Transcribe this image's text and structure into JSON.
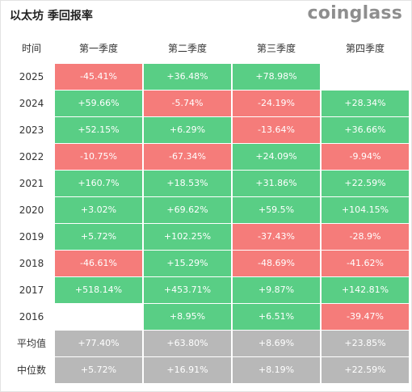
{
  "header": {
    "title": "以太坊 季回报率",
    "brand": "coinglass"
  },
  "colors": {
    "positive": "#59ce85",
    "negative": "#f57c7a",
    "summary": "#b8b8b8"
  },
  "chart_data": {
    "type": "table",
    "title": "以太坊 季回报率",
    "corner_label": "时间",
    "columns": [
      "第一季度",
      "第二季度",
      "第三季度",
      "第四季度"
    ],
    "rows": [
      {
        "label": "2025",
        "values": [
          "-45.41%",
          "+36.48%",
          "+78.98%",
          ""
        ]
      },
      {
        "label": "2024",
        "values": [
          "+59.66%",
          "-5.74%",
          "-24.19%",
          "+28.34%"
        ]
      },
      {
        "label": "2023",
        "values": [
          "+52.15%",
          "+6.29%",
          "-13.64%",
          "+36.66%"
        ]
      },
      {
        "label": "2022",
        "values": [
          "-10.75%",
          "-67.34%",
          "+24.09%",
          "-9.94%"
        ]
      },
      {
        "label": "2021",
        "values": [
          "+160.7%",
          "+18.53%",
          "+31.86%",
          "+22.59%"
        ]
      },
      {
        "label": "2020",
        "values": [
          "+3.02%",
          "+69.62%",
          "+59.5%",
          "+104.15%"
        ]
      },
      {
        "label": "2019",
        "values": [
          "+5.72%",
          "+102.25%",
          "-37.43%",
          "-28.9%"
        ]
      },
      {
        "label": "2018",
        "values": [
          "-46.61%",
          "+15.29%",
          "-48.69%",
          "-41.62%"
        ]
      },
      {
        "label": "2017",
        "values": [
          "+518.14%",
          "+453.71%",
          "+9.87%",
          "+142.81%"
        ]
      },
      {
        "label": "2016",
        "values": [
          "",
          "+8.95%",
          "+6.51%",
          "-39.47%"
        ]
      }
    ],
    "summary_rows": [
      {
        "label": "平均值",
        "values": [
          "+77.40%",
          "+63.80%",
          "+8.69%",
          "+23.85%"
        ]
      },
      {
        "label": "中位数",
        "values": [
          "+5.72%",
          "+16.91%",
          "+8.19%",
          "+22.59%"
        ]
      }
    ]
  }
}
